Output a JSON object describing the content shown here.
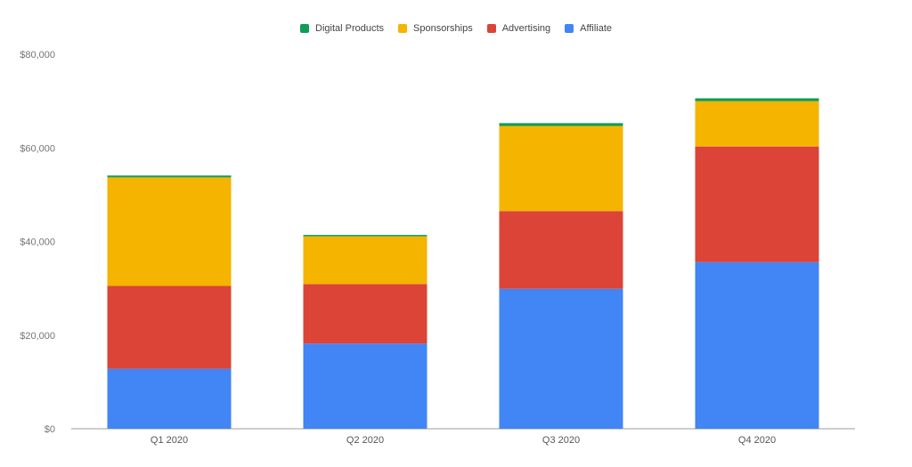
{
  "chart_data": {
    "type": "bar",
    "stacked": true,
    "categories": [
      "Q1 2020",
      "Q2 2020",
      "Q3 2020",
      "Q4 2020"
    ],
    "series": [
      {
        "name": "Affiliate",
        "color": "#4285F4",
        "values": [
          12800,
          18200,
          29900,
          35600
        ]
      },
      {
        "name": "Advertising",
        "color": "#DB4437",
        "values": [
          17700,
          12700,
          16600,
          24700
        ]
      },
      {
        "name": "Sponsorships",
        "color": "#F4B400",
        "values": [
          23200,
          10200,
          18200,
          9700
        ]
      },
      {
        "name": "Digital Products",
        "color": "#0F9D58",
        "values": [
          400,
          300,
          600,
          600
        ]
      }
    ],
    "legend_order": [
      "Digital Products",
      "Sponsorships",
      "Advertising",
      "Affiliate"
    ],
    "legend_position": "top",
    "ylim": [
      0,
      80000
    ],
    "yticks": [
      0,
      20000,
      40000,
      60000,
      80000
    ],
    "ytick_labels": [
      "$0",
      "$20,000",
      "$40,000",
      "$60,000",
      "$80,000"
    ],
    "grid": false
  }
}
